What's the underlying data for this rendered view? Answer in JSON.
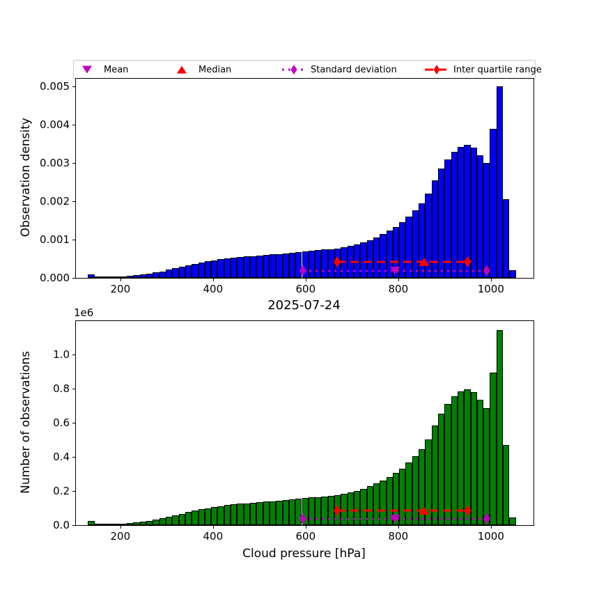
{
  "figure_title": "2025-07-24",
  "legend": {
    "items": [
      {
        "label": "Mean",
        "marker": "triangle-down",
        "color": "#bf00bf"
      },
      {
        "label": "Median",
        "marker": "triangle-up",
        "color": "#ff0000"
      },
      {
        "label": "Standard deviation",
        "marker": "thin-diamond-dotted-line",
        "color": "#bf00bf"
      },
      {
        "label": "Inter quartile range",
        "marker": "thin-diamond-dashed-line",
        "color": "#ff0000"
      }
    ]
  },
  "chart_data": [
    {
      "type": "histogram",
      "position": "top",
      "ylabel": "Observation density",
      "bar_color": "#0000ff",
      "bar_edge_color": "#000000",
      "xlim": [
        104,
        1092
      ],
      "ylim": [
        0,
        0.0052
      ],
      "xtick_values": [
        200,
        400,
        600,
        800,
        1000
      ],
      "xtick_labels": [
        "200",
        "400",
        "600",
        "800",
        "1000"
      ],
      "ytick_values": [
        0,
        0.001,
        0.002,
        0.003,
        0.004,
        0.005
      ],
      "ytick_labels": [
        "0.000",
        "0.001",
        "0.002",
        "0.003",
        "0.004",
        "0.005"
      ],
      "bin_start": 130,
      "bin_width": 14,
      "values": [
        0.0001,
        2e-05,
        2.5e-05,
        3e-05,
        3.5e-05,
        4.5e-05,
        5.5e-05,
        7e-05,
        9e-05,
        0.00011,
        0.00014,
        0.00017,
        0.00021,
        0.00025,
        0.00029,
        0.00033,
        0.00037,
        0.0004,
        0.00043,
        0.00046,
        0.00049,
        0.00051,
        0.00053,
        0.00055,
        0.00056,
        0.00057,
        0.00058,
        0.0006,
        0.00061,
        0.00062,
        0.00064,
        0.00066,
        0.00068,
        0.0007,
        0.00071,
        0.00072,
        0.00074,
        0.00075,
        0.00077,
        0.0008,
        0.00084,
        0.00088,
        0.00093,
        0.00099,
        0.00106,
        0.00114,
        0.00123,
        0.00133,
        0.00145,
        0.0016,
        0.00177,
        0.00195,
        0.0022,
        0.00255,
        0.00285,
        0.0031,
        0.0033,
        0.00342,
        0.00347,
        0.0034,
        0.0032,
        0.003,
        0.0039,
        0.005,
        0.00205,
        0.0002
      ],
      "markers": {
        "mean": {
          "x": 793,
          "y": 0.00019,
          "color": "#bf00bf",
          "shape": "triangle-down"
        },
        "median": {
          "x": 856,
          "y": 0.00042,
          "color": "#ff0000",
          "shape": "triangle-up"
        },
        "std": {
          "x_from": 594,
          "x_to": 991,
          "y": 0.00019,
          "color": "#bf00bf",
          "line": "dotted"
        },
        "iqr": {
          "x_from": 668,
          "x_to": 950,
          "y": 0.00042,
          "color": "#ff0000",
          "line": "dashed"
        }
      }
    },
    {
      "type": "histogram",
      "position": "bottom",
      "ylabel": "Number of observations",
      "xlabel": "Cloud pressure [hPa]",
      "offset_text": "1e6",
      "y_unit": "1e6",
      "bar_color": "#008000",
      "bar_edge_color": "#000000",
      "xlim": [
        104,
        1092
      ],
      "ylim": [
        0,
        1.196
      ],
      "xtick_values": [
        200,
        400,
        600,
        800,
        1000
      ],
      "xtick_labels": [
        "200",
        "400",
        "600",
        "800",
        "1000"
      ],
      "ytick_values": [
        0,
        0.2,
        0.4,
        0.6,
        0.8,
        1.0
      ],
      "ytick_labels": [
        "0.0",
        "0.2",
        "0.4",
        "0.6",
        "0.8",
        "1.0"
      ],
      "bin_start": 130,
      "bin_width": 14,
      "values": [
        0.023,
        0.005,
        0.006,
        0.007,
        0.008,
        0.01,
        0.013,
        0.016,
        0.021,
        0.025,
        0.032,
        0.039,
        0.048,
        0.057,
        0.066,
        0.076,
        0.085,
        0.092,
        0.098,
        0.105,
        0.112,
        0.117,
        0.121,
        0.126,
        0.128,
        0.131,
        0.133,
        0.137,
        0.14,
        0.142,
        0.147,
        0.151,
        0.156,
        0.16,
        0.163,
        0.165,
        0.169,
        0.172,
        0.176,
        0.183,
        0.192,
        0.202,
        0.213,
        0.227,
        0.243,
        0.261,
        0.282,
        0.305,
        0.332,
        0.366,
        0.405,
        0.447,
        0.504,
        0.584,
        0.653,
        0.71,
        0.756,
        0.783,
        0.795,
        0.779,
        0.733,
        0.687,
        0.893,
        1.145,
        0.469,
        0.046
      ],
      "markers": {
        "mean": {
          "x": 793,
          "y": 0.038,
          "color": "#bf00bf",
          "shape": "triangle-down"
        },
        "median": {
          "x": 856,
          "y": 0.085,
          "color": "#ff0000",
          "shape": "triangle-up"
        },
        "std": {
          "x_from": 594,
          "x_to": 991,
          "y": 0.038,
          "color": "#bf00bf",
          "line": "dotted"
        },
        "iqr": {
          "x_from": 668,
          "x_to": 950,
          "y": 0.085,
          "color": "#ff0000",
          "line": "dashed"
        }
      }
    }
  ]
}
